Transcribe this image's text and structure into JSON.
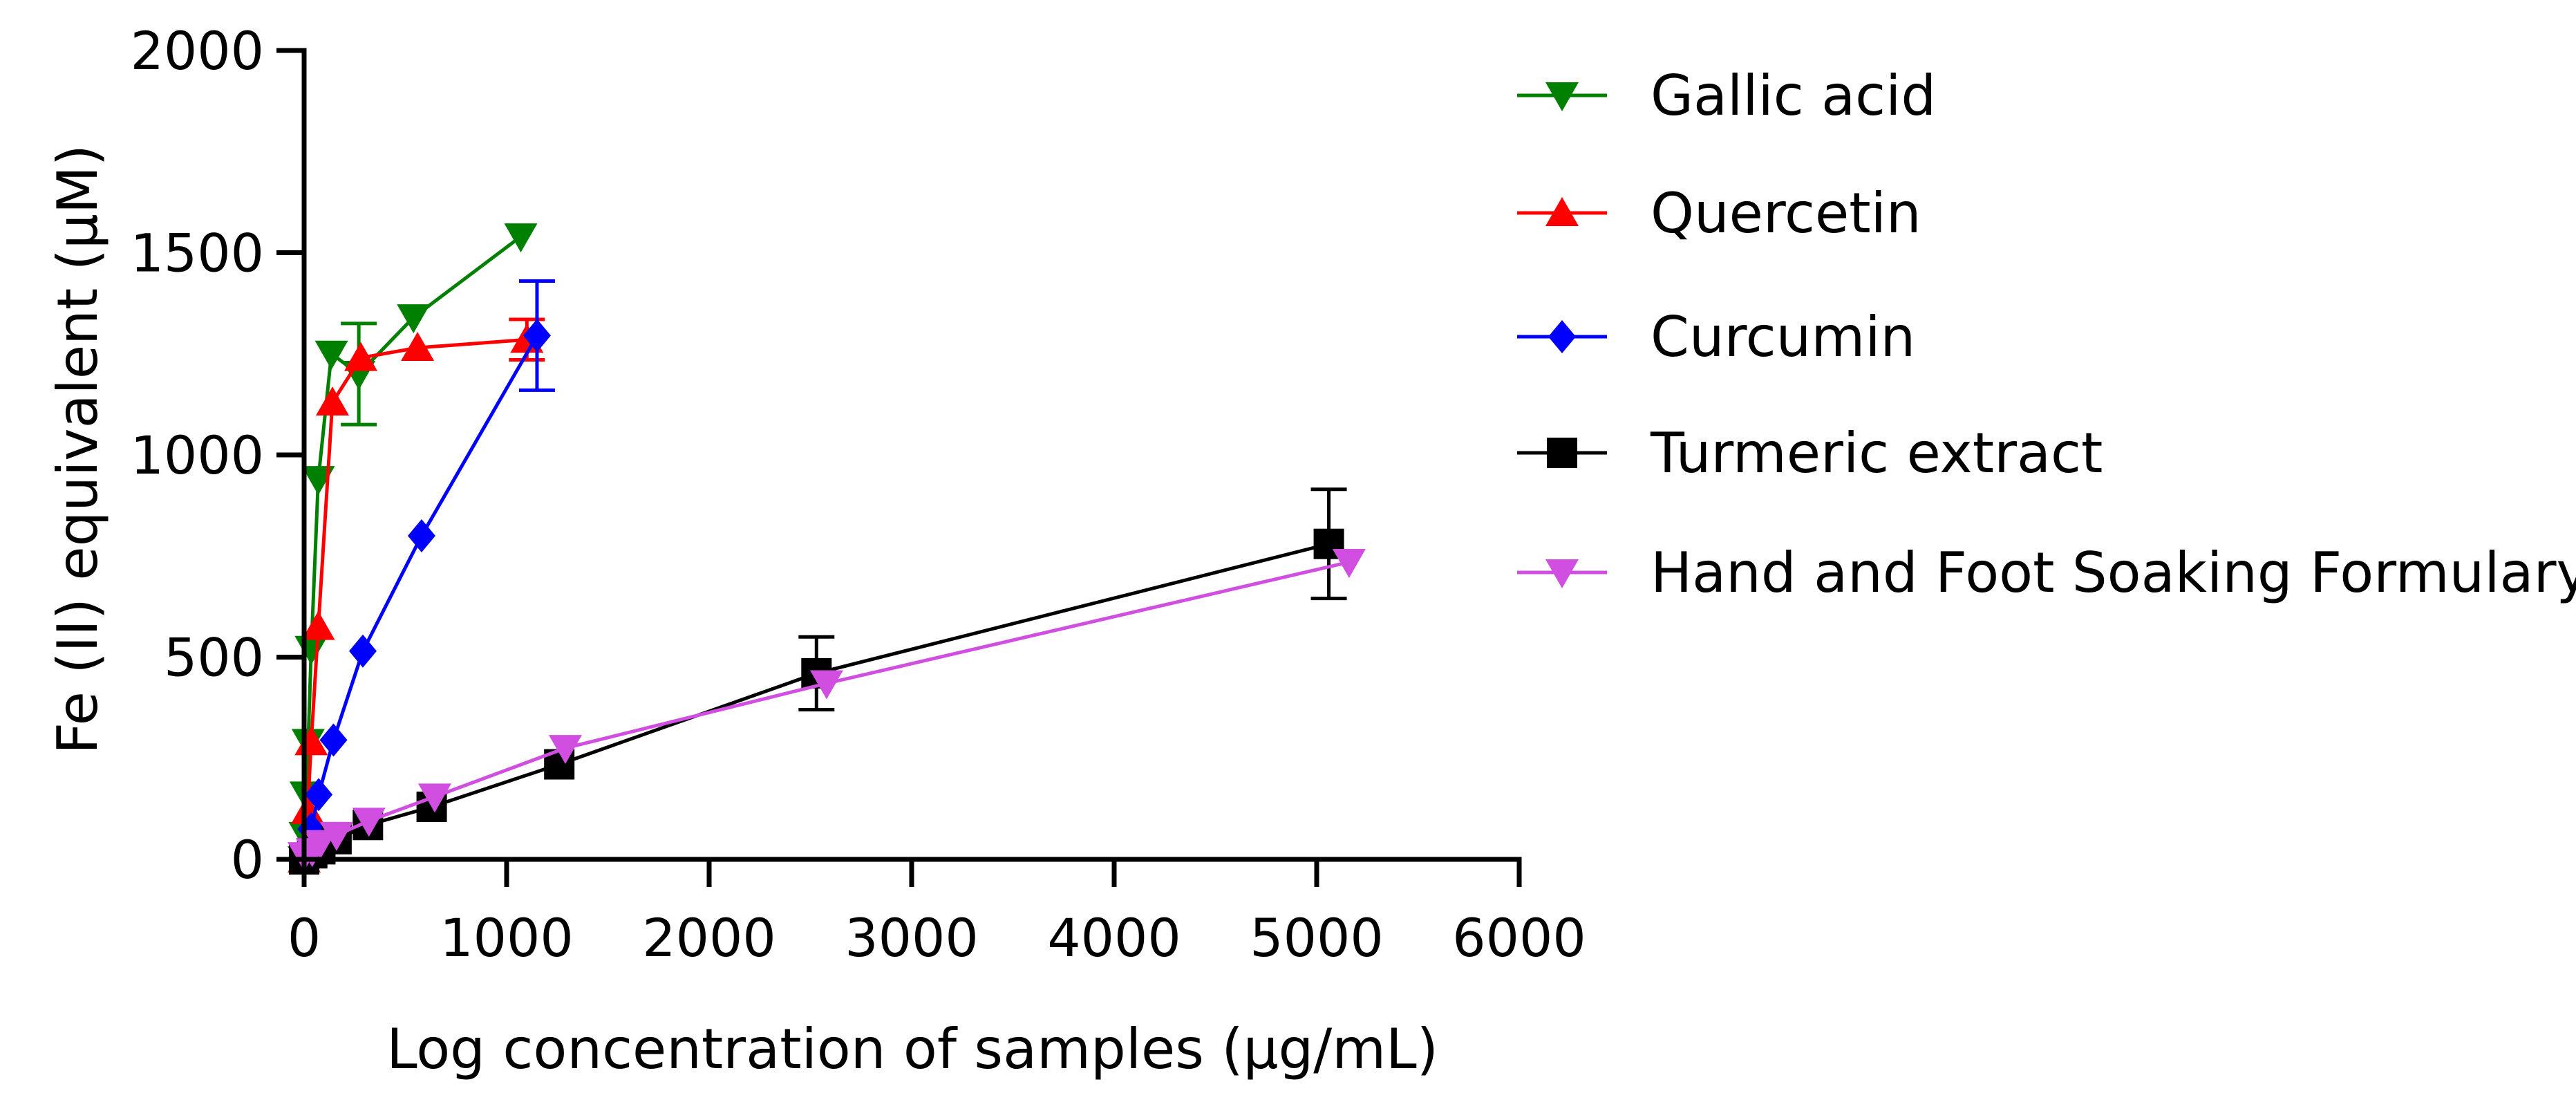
{
  "chart_data": {
    "type": "line",
    "title": "",
    "xlabel": "Log concentration of samples (µg/mL)",
    "ylabel": "Fe (II) equivalent (µM)",
    "xlim": [
      0,
      6000
    ],
    "ylim": [
      0,
      2000
    ],
    "xticks": [
      0,
      1000,
      2000,
      3000,
      4000,
      5000,
      6000
    ],
    "yticks": [
      0,
      500,
      1000,
      1500,
      2000
    ],
    "xtick_labels": [
      "0",
      "1000",
      "2000",
      "3000",
      "4000",
      "5000",
      "6000"
    ],
    "ytick_labels": [
      "0",
      "500",
      "1000",
      "1500",
      "2000"
    ],
    "legend_position": "right",
    "series": [
      {
        "name": "Gallic acid",
        "color": "#008000",
        "marker": "triangle-down",
        "x": [
          0,
          5,
          10,
          20,
          35,
          70,
          135,
          270,
          540,
          1070
        ],
        "y": [
          0,
          60,
          160,
          290,
          520,
          940,
          1250,
          1200,
          1340,
          1540
        ],
        "error": [
          0,
          0,
          0,
          0,
          0,
          0,
          0,
          125,
          0,
          0
        ]
      },
      {
        "name": "Quercetin",
        "color": "#ff0000",
        "marker": "triangle-up",
        "x": [
          0,
          17,
          35,
          70,
          140,
          280,
          560,
          1100
        ],
        "y": [
          0,
          120,
          290,
          575,
          1130,
          1240,
          1265,
          1285
        ],
        "error": [
          0,
          0,
          0,
          0,
          0,
          0,
          0,
          50
        ]
      },
      {
        "name": "Curcumin",
        "color": "#0000ff",
        "marker": "diamond",
        "x": [
          0,
          35,
          72,
          145,
          290,
          580,
          1150
        ],
        "y": [
          0,
          75,
          160,
          295,
          515,
          800,
          1295
        ],
        "error": [
          0,
          0,
          0,
          0,
          0,
          0,
          135
        ]
      },
      {
        "name": "Turmeric extract",
        "color": "#000000",
        "marker": "square",
        "x": [
          0,
          40,
          80,
          160,
          315,
          630,
          1260,
          2530,
          5060
        ],
        "y": [
          0,
          15,
          25,
          50,
          85,
          130,
          235,
          460,
          780
        ],
        "error": [
          0,
          0,
          0,
          0,
          0,
          0,
          0,
          90,
          135
        ]
      },
      {
        "name": "Hand and Foot Soaking Formulary",
        "color": "#d14fe0",
        "marker": "triangle-down",
        "x": [
          0,
          40,
          80,
          160,
          320,
          645,
          1290,
          2580,
          5160
        ],
        "y": [
          10,
          20,
          40,
          60,
          95,
          155,
          275,
          435,
          735
        ],
        "error": [
          0,
          0,
          0,
          0,
          0,
          0,
          0,
          0,
          0
        ]
      }
    ]
  }
}
